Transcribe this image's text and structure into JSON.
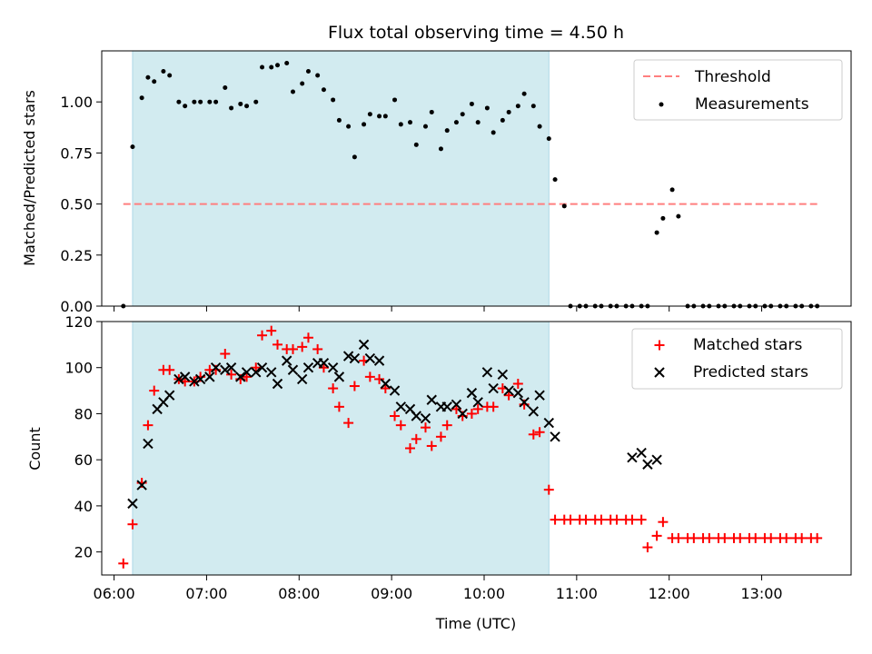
{
  "title": "Flux total observing time = 4.50 h",
  "xlabel": "Time (UTC)",
  "colors": {
    "shade": "#d2ebf0",
    "shade_edge": "#add8e6",
    "threshold": "#ff7f7f",
    "measurement": "#000000",
    "matched": "#ff0000",
    "predicted": "#000000"
  },
  "x_ticks": [
    "06:00",
    "07:00",
    "08:00",
    "09:00",
    "10:00",
    "11:00",
    "12:00",
    "13:00"
  ],
  "chart_data": [
    {
      "type": "scatter",
      "name": "ratio-panel",
      "ylabel": "Matched/Predicted stars",
      "xlim": [
        "05:52",
        "13:58"
      ],
      "ylim": [
        0,
        1.25
      ],
      "y_ticks": [
        "0.00",
        "0.25",
        "0.50",
        "0.75",
        "1.00"
      ],
      "shaded_span": [
        "06:12",
        "10:42"
      ],
      "threshold": {
        "name": "Threshold",
        "value": 0.5,
        "x_range": [
          "06:06",
          "13:36"
        ]
      },
      "series": [
        {
          "name": "Measurements",
          "marker": "dot",
          "x": [
            "06:06",
            "06:12",
            "06:18",
            "06:22",
            "06:26",
            "06:32",
            "06:36",
            "06:42",
            "06:46",
            "06:52",
            "06:56",
            "07:02",
            "07:06",
            "07:12",
            "07:16",
            "07:22",
            "07:26",
            "07:32",
            "07:36",
            "07:42",
            "07:46",
            "07:52",
            "07:56",
            "08:02",
            "08:06",
            "08:12",
            "08:16",
            "08:22",
            "08:26",
            "08:32",
            "08:36",
            "08:42",
            "08:46",
            "08:52",
            "08:56",
            "09:02",
            "09:06",
            "09:12",
            "09:16",
            "09:22",
            "09:26",
            "09:32",
            "09:36",
            "09:42",
            "09:46",
            "09:52",
            "09:56",
            "10:02",
            "10:06",
            "10:12",
            "10:16",
            "10:22",
            "10:26",
            "10:32",
            "10:36",
            "10:42",
            "10:46",
            "10:52",
            "10:56",
            "11:02",
            "11:06",
            "11:12",
            "11:16",
            "11:22",
            "11:26",
            "11:32",
            "11:36",
            "11:42",
            "11:46",
            "11:52",
            "11:56",
            "12:02",
            "12:06",
            "12:12",
            "12:16",
            "12:22",
            "12:26",
            "12:32",
            "12:36",
            "12:42",
            "12:46",
            "12:52",
            "12:56",
            "13:02",
            "13:06",
            "13:12",
            "13:16",
            "13:22",
            "13:26",
            "13:32",
            "13:36"
          ],
          "y": [
            0.0,
            0.78,
            1.02,
            1.12,
            1.1,
            1.15,
            1.13,
            1.0,
            0.98,
            1.0,
            1.0,
            1.0,
            1.0,
            1.07,
            0.97,
            0.99,
            0.98,
            1.0,
            1.17,
            1.17,
            1.18,
            1.19,
            1.05,
            1.09,
            1.15,
            1.13,
            1.06,
            1.01,
            0.91,
            0.88,
            0.73,
            0.89,
            0.94,
            0.93,
            0.93,
            1.01,
            0.89,
            0.9,
            0.79,
            0.88,
            0.95,
            0.77,
            0.86,
            0.9,
            0.94,
            0.99,
            0.9,
            0.97,
            0.85,
            0.91,
            0.95,
            0.98,
            1.04,
            0.98,
            0.88,
            0.82,
            0.62,
            0.49,
            0.0,
            0.0,
            0.0,
            0.0,
            0.0,
            0.0,
            0.0,
            0.0,
            0.0,
            0.0,
            0.0,
            0.36,
            0.43,
            0.57,
            0.44,
            0.0,
            0.0,
            0.0,
            0.0,
            0.0,
            0.0,
            0.0,
            0.0,
            0.0,
            0.0,
            0.0,
            0.0,
            0.0,
            0.0,
            0.0,
            0.0,
            0.0,
            0.0
          ]
        }
      ]
    },
    {
      "type": "scatter",
      "name": "count-panel",
      "ylabel": "Count",
      "xlim": [
        "05:52",
        "13:58"
      ],
      "ylim": [
        10,
        120
      ],
      "y_ticks": [
        "20",
        "40",
        "60",
        "80",
        "100",
        "120"
      ],
      "shaded_span": [
        "06:12",
        "10:42"
      ],
      "series": [
        {
          "name": "Matched stars",
          "marker": "plus",
          "x": [
            "06:06",
            "06:12",
            "06:18",
            "06:22",
            "06:26",
            "06:32",
            "06:36",
            "06:42",
            "06:46",
            "06:52",
            "06:56",
            "07:02",
            "07:06",
            "07:12",
            "07:16",
            "07:22",
            "07:26",
            "07:32",
            "07:36",
            "07:42",
            "07:46",
            "07:52",
            "07:56",
            "08:02",
            "08:06",
            "08:12",
            "08:16",
            "08:22",
            "08:26",
            "08:32",
            "08:36",
            "08:42",
            "08:46",
            "08:52",
            "08:56",
            "09:02",
            "09:06",
            "09:12",
            "09:16",
            "09:22",
            "09:26",
            "09:32",
            "09:36",
            "09:42",
            "09:46",
            "09:52",
            "09:56",
            "10:02",
            "10:06",
            "10:12",
            "10:16",
            "10:22",
            "10:26",
            "10:32",
            "10:36",
            "10:42",
            "10:46",
            "10:52",
            "10:56",
            "11:02",
            "11:06",
            "11:12",
            "11:16",
            "11:22",
            "11:26",
            "11:32",
            "11:36",
            "11:42",
            "11:46",
            "11:52",
            "11:56",
            "12:02",
            "12:06",
            "12:12",
            "12:16",
            "12:22",
            "12:26",
            "12:32",
            "12:36",
            "12:42",
            "12:46",
            "12:52",
            "12:56",
            "13:02",
            "13:06",
            "13:12",
            "13:16",
            "13:22",
            "13:26",
            "13:32",
            "13:36"
          ],
          "y": [
            15,
            32,
            50,
            75,
            90,
            99,
            99,
            95,
            94,
            94,
            96,
            99,
            99,
            106,
            97,
            95,
            96,
            100,
            114,
            116,
            110,
            108,
            108,
            109,
            113,
            108,
            100,
            91,
            83,
            76,
            92,
            103,
            96,
            95,
            91,
            79,
            75,
            65,
            69,
            74,
            66,
            70,
            75,
            82,
            79,
            80,
            82,
            83,
            83,
            91,
            88,
            93,
            84,
            71,
            72,
            47,
            34,
            34,
            34,
            34,
            34,
            34,
            34,
            34,
            34,
            34,
            34,
            34,
            22,
            27,
            33,
            26,
            26,
            26,
            26,
            26,
            26,
            26,
            26,
            26,
            26,
            26,
            26,
            26,
            26,
            26,
            26,
            26,
            26,
            26,
            26
          ]
        },
        {
          "name": "Predicted stars",
          "marker": "cross",
          "x": [
            "06:12",
            "06:18",
            "06:22",
            "06:28",
            "06:32",
            "06:36",
            "06:42",
            "06:46",
            "06:52",
            "06:56",
            "07:02",
            "07:06",
            "07:12",
            "07:16",
            "07:22",
            "07:26",
            "07:32",
            "07:36",
            "07:42",
            "07:46",
            "07:52",
            "07:56",
            "08:02",
            "08:06",
            "08:12",
            "08:16",
            "08:22",
            "08:26",
            "08:32",
            "08:36",
            "08:42",
            "08:46",
            "08:52",
            "08:56",
            "09:02",
            "09:06",
            "09:12",
            "09:16",
            "09:22",
            "09:26",
            "09:32",
            "09:36",
            "09:42",
            "09:46",
            "09:52",
            "09:56",
            "10:02",
            "10:06",
            "10:12",
            "10:16",
            "10:22",
            "10:26",
            "10:32",
            "10:36",
            "10:42",
            "10:46",
            "11:36",
            "11:42",
            "11:46",
            "11:52"
          ],
          "y": [
            41,
            49,
            67,
            82,
            85,
            88,
            95,
            96,
            94,
            95,
            96,
            100,
            99,
            100,
            96,
            98,
            98,
            100,
            98,
            93,
            103,
            99,
            95,
            100,
            102,
            102,
            100,
            96,
            105,
            104,
            110,
            104,
            103,
            93,
            90,
            83,
            82,
            79,
            78,
            86,
            83,
            83,
            84,
            80,
            89,
            85,
            98,
            91,
            97,
            90,
            89,
            85,
            81,
            88,
            76,
            70,
            61,
            63,
            58,
            60
          ]
        }
      ]
    }
  ]
}
